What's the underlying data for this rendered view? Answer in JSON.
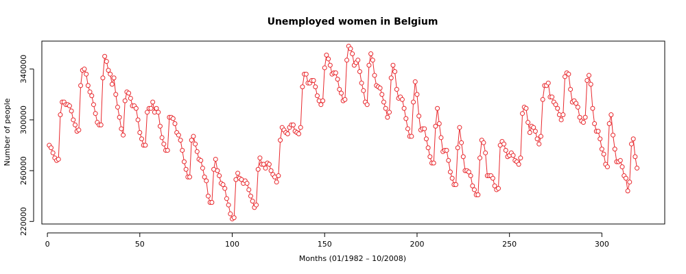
{
  "chart_data": {
    "type": "line",
    "title": "Unemployed women in Belgium",
    "xlabel": "Months (01/1982 – 10/2008)",
    "ylabel": "Number of people",
    "xlim": [
      -3,
      334
    ],
    "ylim": [
      218000,
      362000
    ],
    "xticks": [
      0,
      50,
      100,
      150,
      200,
      250,
      300
    ],
    "xtick_labels": [
      "0",
      "50",
      "100",
      "150",
      "200",
      "250",
      "300"
    ],
    "yticks": [
      220000,
      260000,
      300000,
      340000
    ],
    "ytick_labels": [
      "220000",
      "260000",
      "300000",
      "340000"
    ],
    "grid": false,
    "legend": "none",
    "markers": "open-circle",
    "colors": {
      "series": "#e8262b",
      "axis": "#000000",
      "background": "#ffffff"
    },
    "series": [
      {
        "x_start": 1,
        "values": [
          280000,
          278000,
          274000,
          270000,
          268000,
          269000,
          304000,
          314000,
          314000,
          312000,
          312000,
          311000,
          307000,
          300000,
          296000,
          291000,
          292000,
          327000,
          339000,
          340000,
          336000,
          327000,
          322000,
          319000,
          312000,
          305000,
          298000,
          296000,
          296000,
          333000,
          350000,
          346000,
          339000,
          336000,
          328000,
          333000,
          320000,
          310000,
          302000,
          293000,
          288000,
          315000,
          322000,
          321000,
          317000,
          311000,
          311000,
          309000,
          300000,
          290000,
          285000,
          280000,
          280000,
          306000,
          309000,
          309000,
          314000,
          306000,
          309000,
          306000,
          295000,
          286000,
          281000,
          276000,
          276000,
          302000,
          302000,
          301000,
          297000,
          290000,
          288000,
          284000,
          276000,
          267000,
          261000,
          255000,
          255000,
          284000,
          287000,
          281000,
          275000,
          269000,
          268000,
          262000,
          255000,
          252000,
          240000,
          235000,
          235000,
          261000,
          269000,
          260000,
          256000,
          250000,
          249000,
          246000,
          238000,
          233000,
          226000,
          222000,
          223000,
          253000,
          258000,
          254000,
          253000,
          250000,
          252000,
          250000,
          245000,
          240000,
          236000,
          231000,
          233000,
          261000,
          270000,
          265000,
          265000,
          262000,
          266000,
          265000,
          260000,
          257000,
          255000,
          251000,
          256000,
          284000,
          294000,
          292000,
          290000,
          289000,
          294000,
          296000,
          296000,
          291000,
          290000,
          289000,
          294000,
          326000,
          336000,
          336000,
          329000,
          329000,
          331000,
          331000,
          326000,
          319000,
          315000,
          312000,
          315000,
          341000,
          351000,
          348000,
          343000,
          336000,
          337000,
          337000,
          332000,
          324000,
          321000,
          315000,
          316000,
          347000,
          358000,
          356000,
          352000,
          343000,
          345000,
          347000,
          338000,
          329000,
          323000,
          314000,
          312000,
          343000,
          352000,
          347000,
          335000,
          327000,
          326000,
          325000,
          320000,
          314000,
          309000,
          302000,
          306000,
          333000,
          343000,
          338000,
          324000,
          317000,
          318000,
          316000,
          309000,
          301000,
          293000,
          287000,
          287000,
          314000,
          330000,
          320000,
          303000,
          292000,
          293000,
          293000,
          285000,
          278000,
          271000,
          266000,
          266000,
          295000,
          309000,
          297000,
          286000,
          275000,
          276000,
          276000,
          268000,
          259000,
          254000,
          249000,
          249000,
          278000,
          294000,
          282000,
          271000,
          260000,
          260000,
          259000,
          256000,
          248000,
          245000,
          241000,
          241000,
          270000,
          284000,
          282000,
          274000,
          256000,
          256000,
          256000,
          254000,
          248000,
          245000,
          246000,
          280000,
          283000,
          281000,
          276000,
          271000,
          272000,
          274000,
          272000,
          268000,
          267000,
          265000,
          270000,
          305000,
          310000,
          309000,
          298000,
          290000,
          295000,
          294000,
          291000,
          285000,
          281000,
          287000,
          316000,
          327000,
          327000,
          329000,
          318000,
          318000,
          314000,
          312000,
          309000,
          304000,
          300000,
          304000,
          334000,
          337000,
          336000,
          324000,
          314000,
          315000,
          313000,
          310000,
          302000,
          299000,
          298000,
          302000,
          331000,
          335000,
          328000,
          309000,
          297000,
          291000,
          291000,
          285000,
          277000,
          273000,
          265000,
          263000,
          297000,
          304000,
          288000,
          277000,
          267000,
          267000,
          268000,
          263000,
          256000,
          254000,
          244000,
          251000,
          281000,
          285000,
          271000,
          262000
        ]
      }
    ]
  }
}
